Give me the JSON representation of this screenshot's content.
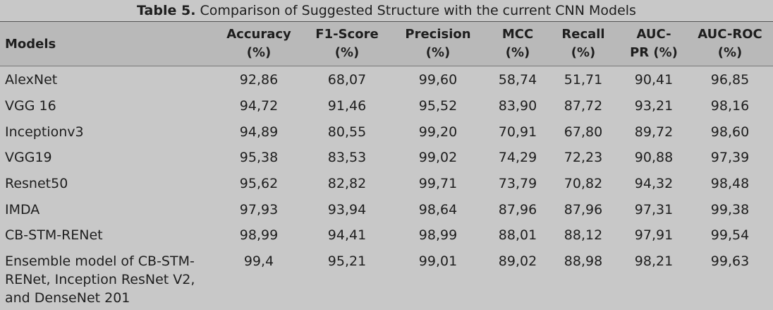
{
  "caption": {
    "label": "Table 5.",
    "text": "Comparison of Suggested Structure with the current CNN Models"
  },
  "headers": [
    {
      "line1": "Models",
      "line2": ""
    },
    {
      "line1": "Accuracy",
      "line2": "(%)"
    },
    {
      "line1": "F1-Score",
      "line2": "(%)"
    },
    {
      "line1": "Precision",
      "line2": "(%)"
    },
    {
      "line1": "MCC",
      "line2": "(%)"
    },
    {
      "line1": "Recall",
      "line2": "(%)"
    },
    {
      "line1": "AUC-",
      "line2": "PR (%)"
    },
    {
      "line1": "AUC-ROC",
      "line2": "(%)"
    }
  ],
  "rows": [
    {
      "model": [
        "AlexNet"
      ],
      "values": [
        "92,86",
        "68,07",
        "99,60",
        "58,74",
        "51,71",
        "90,41",
        "96,85"
      ]
    },
    {
      "model": [
        "VGG 16"
      ],
      "values": [
        "94,72",
        "91,46",
        "95,52",
        "83,90",
        "87,72",
        "93,21",
        "98,16"
      ]
    },
    {
      "model": [
        "Inceptionv3"
      ],
      "values": [
        "94,89",
        "80,55",
        "99,20",
        "70,91",
        "67,80",
        "89,72",
        "98,60"
      ]
    },
    {
      "model": [
        "VGG19"
      ],
      "values": [
        "95,38",
        "83,53",
        "99,02",
        "74,29",
        "72,23",
        "90,88",
        "97,39"
      ]
    },
    {
      "model": [
        "Resnet50"
      ],
      "values": [
        "95,62",
        "82,82",
        "99,71",
        "73,79",
        "70,82",
        "94,32",
        "98,48"
      ]
    },
    {
      "model": [
        "IMDA"
      ],
      "values": [
        "97,93",
        "93,94",
        "98,64",
        "87,96",
        "87,96",
        "97,31",
        "99,38"
      ]
    },
    {
      "model": [
        "CB-STM-RENet"
      ],
      "values": [
        "98,99",
        "94,41",
        "98,99",
        "88,01",
        "88,12",
        "97,91",
        "99,54"
      ]
    },
    {
      "model": [
        "Ensemble model of CB-STM-",
        "RENet, Inception ResNet V2,",
        "and DenseNet 201"
      ],
      "values": [
        "99,4",
        "95,21",
        "99,01",
        "89,02",
        "88,98",
        "98,21",
        "99,63"
      ]
    }
  ]
}
